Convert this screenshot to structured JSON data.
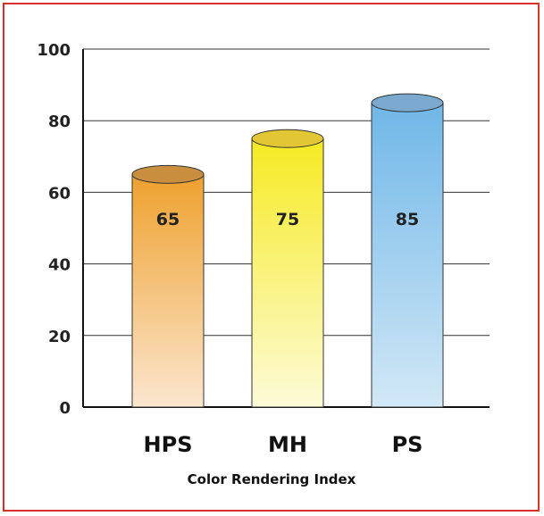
{
  "chart_data": {
    "type": "bar",
    "categories": [
      "HPS",
      "MH",
      "PS"
    ],
    "values": [
      65,
      75,
      85
    ],
    "data_labels": [
      "65",
      "75",
      "85"
    ],
    "title": "",
    "xlabel": "Color Rendering Index",
    "ylabel": "",
    "ylim": [
      0,
      100
    ],
    "yticks": [
      "0",
      "20",
      "40",
      "60",
      "80",
      "100"
    ],
    "grid": true,
    "bar_style": "3d-cylinder",
    "colors": {
      "HPS": {
        "top": "#c98f3e",
        "body_top": "#eea12e",
        "body_bottom": "#fbe6cf"
      },
      "MH": {
        "top": "#e2c634",
        "body_top": "#f6ea22",
        "body_bottom": "#fdfbd8"
      },
      "PS": {
        "top": "#7ba8cf",
        "body_top": "#6fb7e8",
        "body_bottom": "#d2e8f6"
      }
    }
  },
  "frame_color": "#d9322b"
}
